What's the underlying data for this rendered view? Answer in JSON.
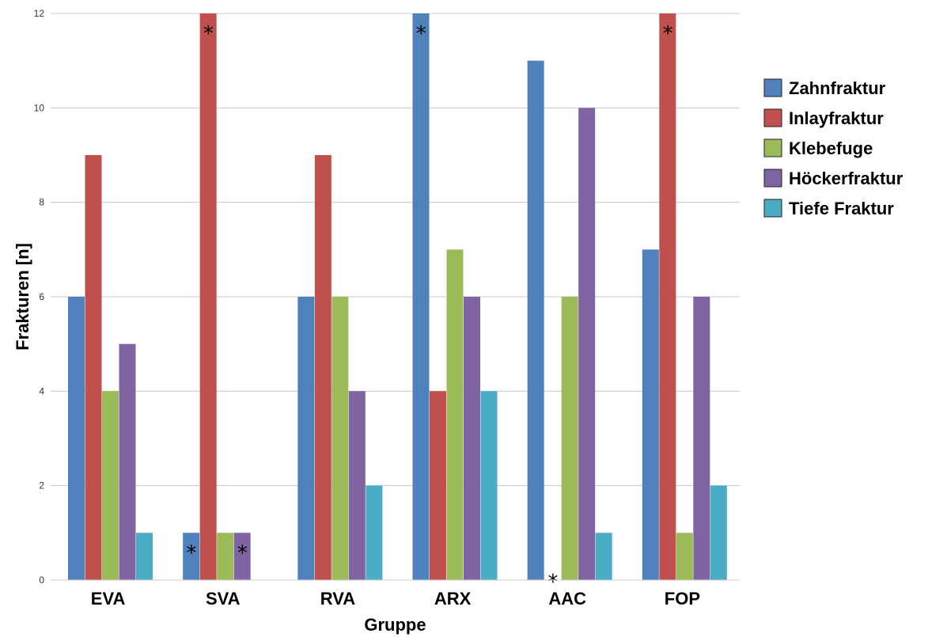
{
  "chart_data": {
    "type": "bar",
    "title": "",
    "xlabel": "Gruppe",
    "ylabel": "Frakturen [n]",
    "ylim": [
      0,
      12
    ],
    "yticks": [
      0,
      2,
      4,
      6,
      8,
      10,
      12
    ],
    "grid": true,
    "legend_position": "right",
    "categories": [
      "EVA",
      "SVA",
      "RVA",
      "ARX",
      "AAC",
      "FOP"
    ],
    "series": [
      {
        "name": "Zahnfraktur",
        "color": "#4f81bd",
        "values": [
          6,
          1,
          6,
          12,
          11,
          7
        ]
      },
      {
        "name": "Inlayfraktur",
        "color": "#c0504d",
        "values": [
          9,
          12,
          9,
          4,
          0,
          12
        ]
      },
      {
        "name": "Klebefuge",
        "color": "#9bbb59",
        "values": [
          4,
          1,
          6,
          7,
          6,
          1
        ]
      },
      {
        "name": "Höckerfraktur",
        "color": "#8064a2",
        "values": [
          5,
          1,
          4,
          6,
          10,
          6
        ]
      },
      {
        "name": "Tiefe Fraktur",
        "color": "#4bacc6",
        "values": [
          1,
          0,
          2,
          4,
          1,
          2
        ]
      }
    ],
    "annotations": [
      {
        "text": "*",
        "category": "SVA",
        "series": "Zahnfraktur"
      },
      {
        "text": "*",
        "category": "SVA",
        "series": "Inlayfraktur"
      },
      {
        "text": "*",
        "category": "SVA",
        "series": "Höckerfraktur"
      },
      {
        "text": "*",
        "category": "ARX",
        "series": "Zahnfraktur"
      },
      {
        "text": "*",
        "category": "AAC",
        "series": "Inlayfraktur"
      },
      {
        "text": "*",
        "category": "FOP",
        "series": "Inlayfraktur"
      }
    ]
  }
}
